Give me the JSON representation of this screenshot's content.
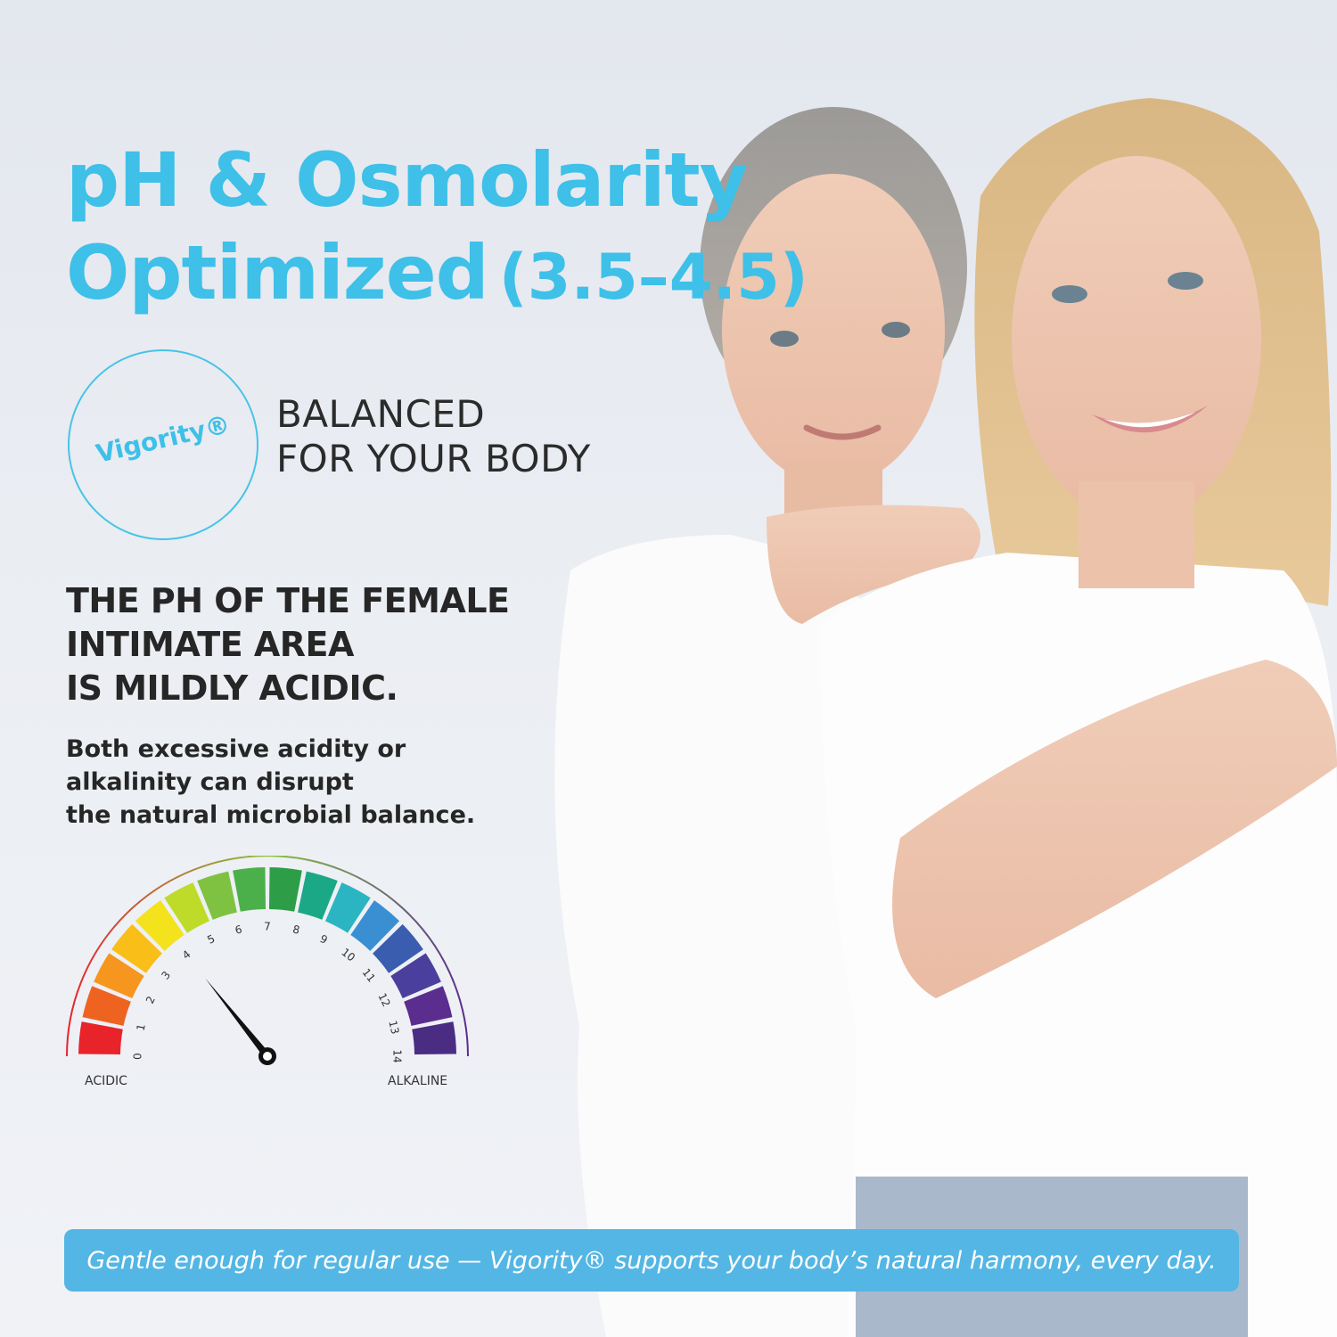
{
  "headline": {
    "line1": "pH & Osmolarity",
    "line2": "Optimized",
    "range": "(3.5–4.5)"
  },
  "logo": {
    "brand": "Vigority®"
  },
  "tagline": {
    "line1": "BALANCED",
    "line2": "FOR YOUR BODY"
  },
  "heading": {
    "line1": "THE PH OF THE FEMALE",
    "line2": "INTIMATE AREA",
    "line3": "IS MILDLY ACIDIC."
  },
  "body": {
    "line1": "Both excessive acidity or",
    "line2": "alkalinity can disrupt",
    "line3": "the natural microbial balance."
  },
  "gauge": {
    "ticks": [
      "0",
      "1",
      "2",
      "3",
      "4",
      "5",
      "6",
      "7",
      "8",
      "9",
      "10",
      "11",
      "12",
      "13",
      "14"
    ],
    "needle_value": 4,
    "left_label": "ACIDIC",
    "right_label": "ALKALINE",
    "segment_colors": [
      "#e8232a",
      "#ef6321",
      "#f6961e",
      "#f9be17",
      "#f3e21c",
      "#bedb2a",
      "#7fc241",
      "#4cb04a",
      "#2e9d48",
      "#1ba887",
      "#2bb5c2",
      "#3a8fd3",
      "#3a5db0",
      "#4a3f9c",
      "#5a2d8f",
      "#4b2c83"
    ],
    "arc_colors": {
      "start": "#e8232a",
      "end": "#5a2d8f"
    }
  },
  "banner": {
    "text": "Gentle enough for regular use — Vigority® supports your body’s natural harmony, every day."
  },
  "colors": {
    "accent": "#3ec0e8",
    "banner": "#54b6e4",
    "text_dark": "#262626"
  }
}
